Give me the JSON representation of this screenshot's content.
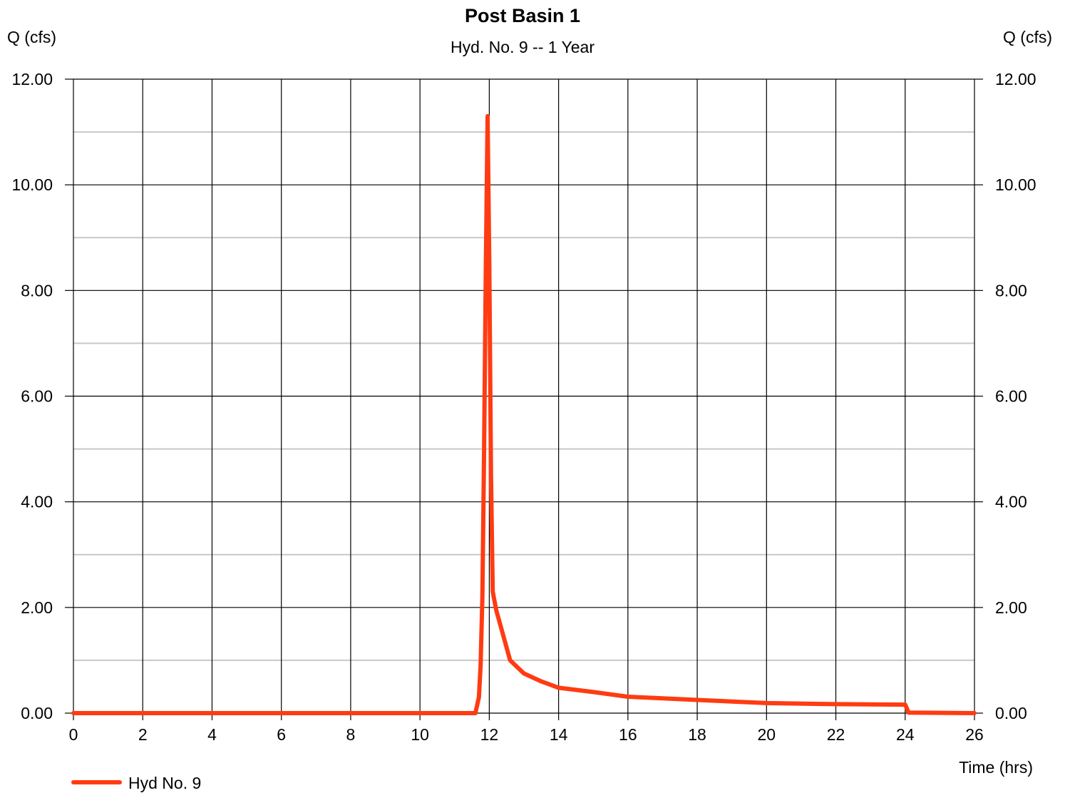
{
  "chart_data": {
    "type": "line",
    "title": "Post Basin 1",
    "subtitle": "Hyd. No. 9 -- 1 Year",
    "ylabel_left": "Q (cfs)",
    "ylabel_right": "Q (cfs)",
    "xlabel": "Time (hrs)",
    "xlim": [
      0,
      26
    ],
    "ylim": [
      0,
      12
    ],
    "x_ticks": [
      "0",
      "2",
      "4",
      "6",
      "8",
      "10",
      "12",
      "14",
      "16",
      "18",
      "20",
      "22",
      "24",
      "26"
    ],
    "y_ticks": [
      "0.00",
      "2.00",
      "4.00",
      "6.00",
      "8.00",
      "10.00",
      "12.00"
    ],
    "grid": true,
    "legend_position": "bottom-left",
    "line_color": "#ff3b12",
    "series": [
      {
        "name": "Hyd No. 9",
        "x": [
          0,
          11.6,
          11.7,
          11.75,
          11.8,
          11.85,
          11.9,
          11.95,
          12.0,
          12.05,
          12.1,
          12.2,
          12.6,
          13.0,
          13.5,
          14.0,
          15.0,
          16.0,
          18.0,
          20.0,
          22.0,
          24.0,
          24.1,
          26.0
        ],
        "y": [
          0,
          0,
          0.3,
          0.9,
          2.2,
          5.0,
          8.4,
          11.3,
          8.5,
          4.5,
          2.3,
          1.95,
          1.0,
          0.75,
          0.6,
          0.48,
          0.4,
          0.31,
          0.25,
          0.19,
          0.17,
          0.16,
          0.01,
          0
        ]
      }
    ]
  }
}
